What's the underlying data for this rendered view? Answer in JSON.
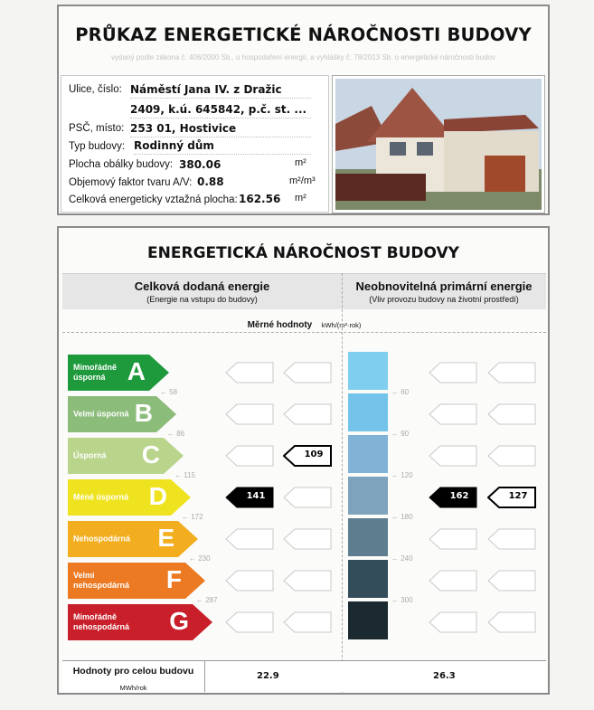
{
  "header": {
    "title": "PRŮKAZ ENERGETICKÉ NÁROČNOSTI BUDOVY",
    "subtitle": "vydaný podle zákona č. 406/2000 Sb., o hospodaření energií, a vyhlášky č. 78/2013 Sb. o energetické náročnosti budov"
  },
  "info": {
    "street_label": "Ulice, číslo:",
    "street_line1": "Náměstí Jana IV. z Dražic",
    "street_line2": "2409, k.ú. 645842, p.č. st. ...",
    "psc_label": "PSČ, místo:",
    "psc_value": "253 01, Hostivice",
    "type_label": "Typ budovy:",
    "type_value": "Rodinný dům",
    "area_label": "Plocha obálky budovy:",
    "area_value": "380.06",
    "area_unit": "m²",
    "factor_label": "Objemový faktor tvaru A/V:",
    "factor_value": "0.88",
    "factor_unit": "m²/m³",
    "ref_label": "Celková energeticky vztažná plocha:",
    "ref_value": "162.56",
    "ref_unit": "m²"
  },
  "energy": {
    "title": "ENERGETICKÁ NÁROČNOST BUDOVY",
    "left_heading": "Celková dodaná energie",
    "left_sub": "(Energie na vstupu do budovy)",
    "right_heading": "Neobnovitelná primární energie",
    "right_sub": "(Vliv provozu budovy na životní prostředí)",
    "specific_label": "Měrné hodnoty",
    "specific_unit": "kWh/(m²·rok)",
    "classes": [
      {
        "letter": "A",
        "label": "Mimořádně úsporná",
        "color": "#1e9a3c",
        "threshold": "58",
        "primary_threshold": "60",
        "segment_color": "#7fcdef"
      },
      {
        "letter": "B",
        "label": "Velmi úsporná",
        "color": "#8cbc7a",
        "threshold": "86",
        "primary_threshold": "90",
        "segment_color": "#74c3ea"
      },
      {
        "letter": "C",
        "label": "Úsporná",
        "color": "#b9d48b",
        "threshold": "115",
        "primary_threshold": "120",
        "segment_color": "#80b3d6"
      },
      {
        "letter": "D",
        "label": "Méně úsporná",
        "color": "#efe320",
        "threshold": "172",
        "primary_threshold": "180",
        "segment_color": "#7ea3bd"
      },
      {
        "letter": "E",
        "label": "Nehospodárná",
        "color": "#f2ae1f",
        "threshold": "230",
        "primary_threshold": "240",
        "segment_color": "#5e7e90"
      },
      {
        "letter": "F",
        "label": "Velmi nehospodárná",
        "color": "#ec7a22",
        "threshold": "287",
        "primary_threshold": "300",
        "segment_color": "#344d5a"
      },
      {
        "letter": "G",
        "label": "Mimořádně nehospodárná",
        "color": "#c91f2a",
        "threshold": "",
        "primary_threshold": "",
        "segment_color": "#1a2a30"
      }
    ],
    "markers": {
      "delivered_actual": {
        "class": "D",
        "value": "141"
      },
      "delivered_reference": {
        "class": "C",
        "value": "109"
      },
      "primary_actual": {
        "class": "D",
        "value": "162"
      },
      "primary_reference": {
        "class": "D",
        "value": "127"
      }
    },
    "totals_label": "Hodnoty pro celou budovu",
    "totals_unit": "MWh/rok",
    "total_delivered": "22.9",
    "total_primary": "26.3"
  }
}
